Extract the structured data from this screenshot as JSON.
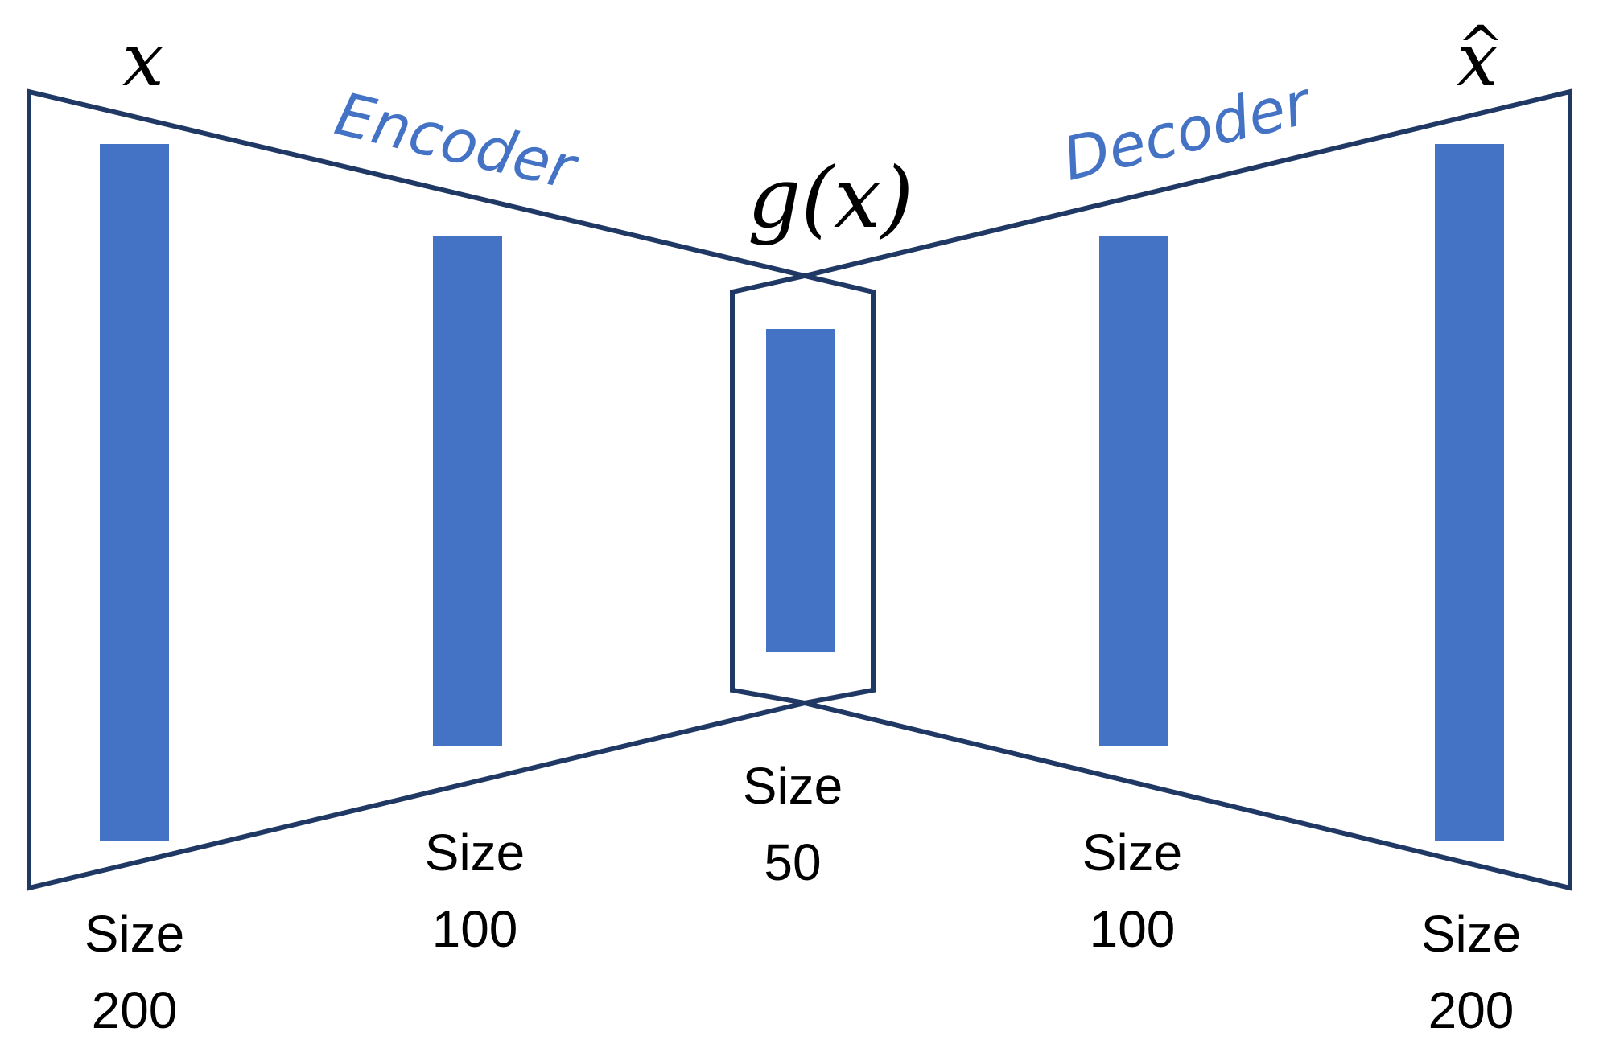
{
  "colors": {
    "outline": "#1f3864",
    "layer_fill": "#4472c4",
    "encoder_text": "#4472c4",
    "decoder_text": "#4472c4",
    "text": "#000000"
  },
  "labels": {
    "input": "x",
    "output": "x",
    "output_accent": "^",
    "bottleneck": "g(x)",
    "encoder": "Encoder",
    "decoder": "Decoder"
  },
  "layers": [
    {
      "id": "input",
      "size_word": "Size",
      "size_value": "200"
    },
    {
      "id": "hidden-encoder",
      "size_word": "Size",
      "size_value": "100"
    },
    {
      "id": "code",
      "size_word": "Size",
      "size_value": "50"
    },
    {
      "id": "hidden-decoder",
      "size_word": "Size",
      "size_value": "100"
    },
    {
      "id": "output",
      "size_word": "Size",
      "size_value": "200"
    }
  ]
}
